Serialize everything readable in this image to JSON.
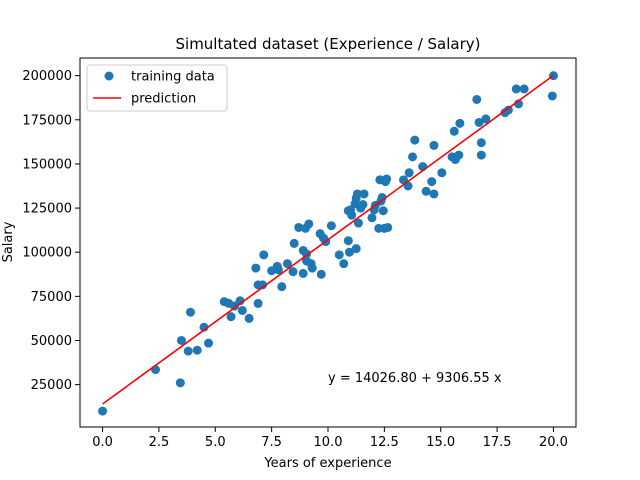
{
  "chart_data": {
    "type": "scatter",
    "title": "Simultated dataset (Experience / Salary)",
    "xlabel": "Years of experience",
    "ylabel": "Salary",
    "xlim": [
      -1.0,
      21.0
    ],
    "ylim": [
      1000,
      210000
    ],
    "xticks": [
      0.0,
      2.5,
      5.0,
      7.5,
      10.0,
      12.5,
      15.0,
      17.5,
      20.0
    ],
    "xtick_labels": [
      "0.0",
      "2.5",
      "5.0",
      "7.5",
      "10.0",
      "12.5",
      "15.0",
      "17.5",
      "20.0"
    ],
    "yticks": [
      25000,
      50000,
      75000,
      100000,
      125000,
      150000,
      175000,
      200000
    ],
    "ytick_labels": [
      "25000",
      "50000",
      "75000",
      "100000",
      "125000",
      "150000",
      "175000",
      "200000"
    ],
    "grid": false,
    "legend_position": "top-left",
    "series": [
      {
        "name": "training data",
        "kind": "scatter",
        "color": "#1f77b4",
        "points": [
          [
            0.0,
            10000
          ],
          [
            2.35,
            33500
          ],
          [
            3.45,
            26000
          ],
          [
            3.5,
            50000
          ],
          [
            3.8,
            44000
          ],
          [
            3.9,
            66000
          ],
          [
            4.2,
            44500
          ],
          [
            4.5,
            57500
          ],
          [
            4.7,
            48500
          ],
          [
            5.4,
            72000
          ],
          [
            5.6,
            71000
          ],
          [
            5.7,
            63500
          ],
          [
            5.85,
            69500
          ],
          [
            6.1,
            72500
          ],
          [
            6.2,
            67000
          ],
          [
            6.5,
            62500
          ],
          [
            6.8,
            91000
          ],
          [
            6.9,
            81500
          ],
          [
            6.9,
            71000
          ],
          [
            7.1,
            81500
          ],
          [
            7.15,
            98500
          ],
          [
            7.5,
            89500
          ],
          [
            7.75,
            92000
          ],
          [
            7.8,
            90000
          ],
          [
            7.95,
            80500
          ],
          [
            8.2,
            93500
          ],
          [
            8.45,
            89000
          ],
          [
            8.5,
            105000
          ],
          [
            8.7,
            114000
          ],
          [
            8.9,
            88000
          ],
          [
            8.9,
            101000
          ],
          [
            9.0,
            113500
          ],
          [
            9.05,
            99000
          ],
          [
            9.05,
            95000
          ],
          [
            9.15,
            116000
          ],
          [
            9.25,
            93500
          ],
          [
            9.3,
            91000
          ],
          [
            9.65,
            110500
          ],
          [
            9.7,
            87500
          ],
          [
            9.8,
            108000
          ],
          [
            9.9,
            106000
          ],
          [
            10.15,
            115000
          ],
          [
            10.5,
            98500
          ],
          [
            10.7,
            93500
          ],
          [
            10.9,
            123500
          ],
          [
            10.9,
            106500
          ],
          [
            10.95,
            100000
          ],
          [
            11.0,
            124000
          ],
          [
            11.05,
            121000
          ],
          [
            11.2,
            127500
          ],
          [
            11.25,
            130500
          ],
          [
            11.25,
            102000
          ],
          [
            11.3,
            133000
          ],
          [
            11.35,
            116500
          ],
          [
            11.45,
            125000
          ],
          [
            11.55,
            127000
          ],
          [
            11.6,
            133000
          ],
          [
            11.95,
            119500
          ],
          [
            12.05,
            124000
          ],
          [
            12.1,
            126500
          ],
          [
            12.25,
            113500
          ],
          [
            12.3,
            141000
          ],
          [
            12.35,
            129000
          ],
          [
            12.4,
            131000
          ],
          [
            12.45,
            123500
          ],
          [
            12.5,
            113500
          ],
          [
            12.55,
            140000
          ],
          [
            12.6,
            141500
          ],
          [
            12.65,
            114000
          ],
          [
            13.35,
            141000
          ],
          [
            13.55,
            137500
          ],
          [
            13.6,
            145000
          ],
          [
            13.75,
            154000
          ],
          [
            13.85,
            163500
          ],
          [
            14.2,
            148500
          ],
          [
            14.35,
            134500
          ],
          [
            14.6,
            140000
          ],
          [
            14.7,
            160500
          ],
          [
            14.7,
            133000
          ],
          [
            15.05,
            145000
          ],
          [
            15.5,
            154000
          ],
          [
            15.6,
            168500
          ],
          [
            15.65,
            152500
          ],
          [
            15.8,
            155000
          ],
          [
            15.85,
            173000
          ],
          [
            16.6,
            186500
          ],
          [
            16.7,
            173500
          ],
          [
            16.8,
            155000
          ],
          [
            16.8,
            162000
          ],
          [
            17.0,
            175500
          ],
          [
            17.85,
            179000
          ],
          [
            18.0,
            180500
          ],
          [
            18.35,
            192500
          ],
          [
            18.45,
            184000
          ],
          [
            18.7,
            192500
          ],
          [
            19.95,
            188500
          ],
          [
            20.0,
            200000
          ]
        ]
      },
      {
        "name": "prediction",
        "kind": "line",
        "color": "#ff0000",
        "intercept": 14026.8,
        "slope": 9306.55,
        "x": [
          0.0,
          20.0
        ]
      }
    ],
    "annotation": {
      "text": "y = 14026.80 + 9306.55 x",
      "x": 10.0,
      "y": 26500
    }
  }
}
